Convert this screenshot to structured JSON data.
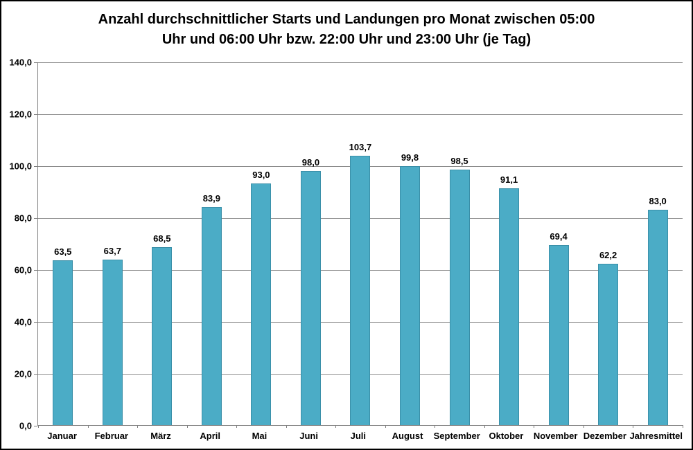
{
  "chart_data": {
    "type": "bar",
    "title": "Anzahl durchschnittlicher Starts und Landungen pro Monat zwischen 05:00 Uhr und 06:00 Uhr bzw. 22:00 Uhr und 23:00 Uhr (je Tag)",
    "title_lines": [
      "Anzahl durchschnittlicher Starts und Landungen pro Monat zwischen 05:00",
      "Uhr und 06:00 Uhr bzw. 22:00 Uhr und 23:00 Uhr (je Tag)"
    ],
    "categories": [
      "Januar",
      "Februar",
      "März",
      "April",
      "Mai",
      "Juni",
      "Juli",
      "August",
      "September",
      "Oktober",
      "November",
      "Dezember",
      "Jahresmittel"
    ],
    "values": [
      63.5,
      63.7,
      68.5,
      83.9,
      93.0,
      98.0,
      103.7,
      99.8,
      98.5,
      91.1,
      69.4,
      62.2,
      83.0
    ],
    "value_labels": [
      "63,5",
      "63,7",
      "68,5",
      "83,9",
      "93,0",
      "98,0",
      "103,7",
      "99,8",
      "98,5",
      "91,1",
      "69,4",
      "62,2",
      "83,0"
    ],
    "xlabel": "",
    "ylabel": "",
    "ylim": [
      0,
      140
    ],
    "ytick_step": 20,
    "ytick_labels": [
      "0,0",
      "20,0",
      "40,0",
      "60,0",
      "80,0",
      "100,0",
      "120,0",
      "140,0"
    ],
    "grid": true,
    "legend_position": "none",
    "bar_color": "#4BACC6",
    "bar_border_color": "#3A8FA8",
    "gridline_color": "#8C8C8C",
    "axis_color": "#7F7F7F",
    "text_color": "#000000",
    "background_color": "#FFFFFF"
  }
}
